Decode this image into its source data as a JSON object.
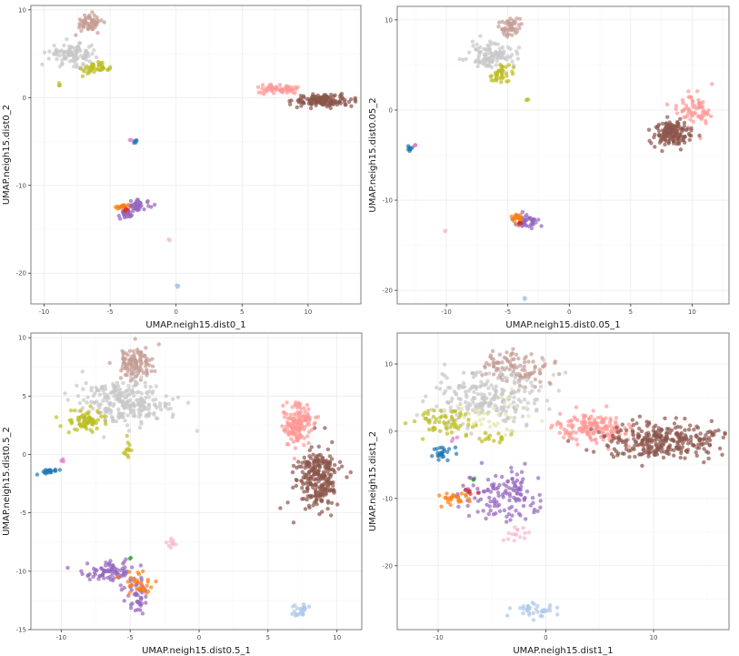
{
  "chart_data": [
    {
      "type": "scatter",
      "xlabel": "UMAP.neigh15.dist0_1",
      "ylabel": "UMAP.neigh15.dist0_2",
      "xlim": [
        -11,
        14
      ],
      "ylim": [
        -23.5,
        10.5
      ],
      "xticks": [
        -10,
        -5,
        0,
        5,
        10
      ],
      "yticks": [
        -20,
        -10,
        0,
        10
      ],
      "grid": true,
      "clusters": [
        {
          "color": "#c49c94",
          "cx": -6.6,
          "cy": 8.5,
          "sx": 0.5,
          "sy": 0.5,
          "n": 60
        },
        {
          "color": "#c7c7c7",
          "cx": -7.8,
          "cy": 5.0,
          "sx": 0.9,
          "sy": 0.6,
          "n": 110
        },
        {
          "color": "#bcbd22",
          "cx": -6.1,
          "cy": 3.3,
          "sx": 0.5,
          "sy": 0.3,
          "n": 40
        },
        {
          "color": "#bcbd22",
          "cx": -8.9,
          "cy": 1.4,
          "sx": 0.1,
          "sy": 0.1,
          "n": 3
        },
        {
          "color": "#ff9896",
          "cx": 7.8,
          "cy": 0.9,
          "sx": 0.9,
          "sy": 0.25,
          "n": 60
        },
        {
          "color": "#8c564b",
          "cx": 11.2,
          "cy": -0.3,
          "sx": 1.1,
          "sy": 0.35,
          "n": 140
        },
        {
          "color": "#e377c2",
          "cx": -3.4,
          "cy": -4.8,
          "sx": 0.05,
          "sy": 0.05,
          "n": 2
        },
        {
          "color": "#1f77b4",
          "cx": -3.1,
          "cy": -5.1,
          "sx": 0.06,
          "sy": 0.15,
          "n": 5
        },
        {
          "color": "#9467bd",
          "cx": -2.9,
          "cy": -12.3,
          "sx": 0.5,
          "sy": 0.3,
          "n": 40
        },
        {
          "color": "#9467bd",
          "cx": -3.8,
          "cy": -13.2,
          "sx": 0.25,
          "sy": 0.35,
          "n": 25
        },
        {
          "color": "#ff7f0e",
          "cx": -4.2,
          "cy": -12.4,
          "sx": 0.25,
          "sy": 0.2,
          "n": 15
        },
        {
          "color": "#d62728",
          "cx": -3.8,
          "cy": -12.8,
          "sx": 0.1,
          "sy": 0.1,
          "n": 3
        },
        {
          "color": "#f7b6d2",
          "cx": -0.5,
          "cy": -16.2,
          "sx": 0.05,
          "sy": 0.05,
          "n": 2
        },
        {
          "color": "#aec7e8",
          "cx": 0.1,
          "cy": -21.4,
          "sx": 0.12,
          "sy": 0.08,
          "n": 5
        }
      ]
    },
    {
      "type": "scatter",
      "xlabel": "UMAP.neigh15.dist0.05_1",
      "ylabel": "UMAP.neigh15.dist0.05_2",
      "xlim": [
        -14,
        13
      ],
      "ylim": [
        -21.5,
        11.5
      ],
      "xticks": [
        -10,
        -5,
        0,
        5,
        10
      ],
      "yticks": [
        -20,
        -10,
        0,
        10
      ],
      "grid": true,
      "clusters": [
        {
          "color": "#c49c94",
          "cx": -4.8,
          "cy": 9.3,
          "sx": 0.4,
          "sy": 0.5,
          "n": 50
        },
        {
          "color": "#c7c7c7",
          "cx": -6.3,
          "cy": 6.0,
          "sx": 0.9,
          "sy": 0.7,
          "n": 110
        },
        {
          "color": "#bcbd22",
          "cx": -5.5,
          "cy": 4.0,
          "sx": 0.5,
          "sy": 0.5,
          "n": 40
        },
        {
          "color": "#bcbd22",
          "cx": -3.5,
          "cy": 1.2,
          "sx": 0.1,
          "sy": 0.1,
          "n": 3
        },
        {
          "color": "#ff9896",
          "cx": 10.0,
          "cy": 0.2,
          "sx": 0.8,
          "sy": 1.1,
          "n": 70
        },
        {
          "color": "#8c564b",
          "cx": 8.4,
          "cy": -2.6,
          "sx": 0.7,
          "sy": 0.7,
          "n": 150
        },
        {
          "color": "#1f77b4",
          "cx": -12.9,
          "cy": -4.2,
          "sx": 0.12,
          "sy": 0.15,
          "n": 8
        },
        {
          "color": "#e377c2",
          "cx": -12.5,
          "cy": -3.9,
          "sx": 0.05,
          "sy": 0.05,
          "n": 3
        },
        {
          "color": "#9467bd",
          "cx": -3.5,
          "cy": -12.3,
          "sx": 0.6,
          "sy": 0.4,
          "n": 45
        },
        {
          "color": "#ff7f0e",
          "cx": -4.2,
          "cy": -12.0,
          "sx": 0.2,
          "sy": 0.3,
          "n": 20
        },
        {
          "color": "#d62728",
          "cx": -4.0,
          "cy": -12.5,
          "sx": 0.1,
          "sy": 0.1,
          "n": 3
        },
        {
          "color": "#f7b6d2",
          "cx": -10.1,
          "cy": -13.4,
          "sx": 0.05,
          "sy": 0.05,
          "n": 2
        },
        {
          "color": "#aec7e8",
          "cx": -3.6,
          "cy": -20.9,
          "sx": 0.05,
          "sy": 0.05,
          "n": 3
        }
      ]
    },
    {
      "type": "scatter",
      "xlabel": "UMAP.neigh15.dist0.5_1",
      "ylabel": "UMAP.neigh15.dist0.5_2",
      "xlim": [
        -12.2,
        11.8
      ],
      "ylim": [
        -15,
        10.4
      ],
      "xticks": [
        -10,
        -5,
        0,
        5,
        10
      ],
      "yticks": [
        -15,
        -10,
        -5,
        0,
        5,
        10
      ],
      "grid": true,
      "clusters": [
        {
          "color": "#c49c94",
          "cx": -4.6,
          "cy": 7.8,
          "sx": 0.7,
          "sy": 0.7,
          "n": 120
        },
        {
          "color": "#c7c7c7",
          "cx": -5.3,
          "cy": 4.4,
          "sx": 1.6,
          "sy": 1.0,
          "n": 260
        },
        {
          "color": "#bcbd22",
          "cx": -8.3,
          "cy": 2.8,
          "sx": 0.7,
          "sy": 0.5,
          "n": 70
        },
        {
          "color": "#bcbd22",
          "cx": -5.2,
          "cy": 0.2,
          "sx": 0.15,
          "sy": 0.5,
          "n": 12
        },
        {
          "color": "#1f77b4",
          "cx": -10.9,
          "cy": -1.4,
          "sx": 0.3,
          "sy": 0.15,
          "n": 22
        },
        {
          "color": "#e377c2",
          "cx": -9.9,
          "cy": -0.5,
          "sx": 0.15,
          "sy": 0.1,
          "n": 3
        },
        {
          "color": "#ff9896",
          "cx": 7.2,
          "cy": 2.6,
          "sx": 0.5,
          "sy": 0.9,
          "n": 150
        },
        {
          "color": "#8c564b",
          "cx": 8.6,
          "cy": -2.1,
          "sx": 0.8,
          "sy": 1.3,
          "n": 260
        },
        {
          "color": "#9467bd",
          "cx": -6.5,
          "cy": -10.0,
          "sx": 0.9,
          "sy": 0.5,
          "n": 80
        },
        {
          "color": "#9467bd",
          "cx": -4.5,
          "cy": -12.0,
          "sx": 0.5,
          "sy": 0.7,
          "n": 45
        },
        {
          "color": "#ff7f0e",
          "cx": -4.3,
          "cy": -11.0,
          "sx": 0.6,
          "sy": 0.6,
          "n": 30
        },
        {
          "color": "#2ca02c",
          "cx": -5.0,
          "cy": -8.9,
          "sx": 0.05,
          "sy": 0.05,
          "n": 2
        },
        {
          "color": "#f7b6d2",
          "cx": -1.9,
          "cy": -7.6,
          "sx": 0.2,
          "sy": 0.3,
          "n": 10
        },
        {
          "color": "#aec7e8",
          "cx": 7.3,
          "cy": -13.3,
          "sx": 0.4,
          "sy": 0.3,
          "n": 25
        }
      ]
    },
    {
      "type": "scatter",
      "xlabel": "UMAP.neigh15.dist1_1",
      "ylabel": "UMAP.neigh15.dist1_2",
      "xlim": [
        -13.8,
        17
      ],
      "ylim": [
        -29.5,
        14.6
      ],
      "xticks": [
        -10,
        0,
        10
      ],
      "yticks": [
        -20,
        -10,
        0,
        10
      ],
      "grid": true,
      "clusters": [
        {
          "color": "#c49c94",
          "cx": -2.8,
          "cy": 9.3,
          "sx": 1.5,
          "sy": 1.5,
          "n": 110
        },
        {
          "color": "#c7c7c7",
          "cx": -5.5,
          "cy": 5.0,
          "sx": 2.5,
          "sy": 2.0,
          "n": 230
        },
        {
          "color": "#e6e6b0",
          "cx": -5.0,
          "cy": 2.5,
          "sx": 2.0,
          "sy": 1.3,
          "n": 40
        },
        {
          "color": "#bcbd22",
          "cx": -9.5,
          "cy": 1.5,
          "sx": 1.5,
          "sy": 1.0,
          "n": 60
        },
        {
          "color": "#bcbd22",
          "cx": -5.0,
          "cy": -0.8,
          "sx": 0.8,
          "sy": 0.6,
          "n": 15
        },
        {
          "color": "#1f77b4",
          "cx": -9.7,
          "cy": -3.2,
          "sx": 0.7,
          "sy": 0.5,
          "n": 25
        },
        {
          "color": "#e377c2",
          "cx": -8.5,
          "cy": -1.2,
          "sx": 0.3,
          "sy": 0.2,
          "n": 3
        },
        {
          "color": "#ff9896",
          "cx": 4.5,
          "cy": 0.5,
          "sx": 1.8,
          "sy": 1.1,
          "n": 170
        },
        {
          "color": "#8c564b",
          "cx": 11.0,
          "cy": -1.3,
          "sx": 2.8,
          "sy": 1.4,
          "n": 300
        },
        {
          "color": "#9467bd",
          "cx": -4.0,
          "cy": -9.5,
          "sx": 1.6,
          "sy": 1.9,
          "n": 130
        },
        {
          "color": "#ff7f0e",
          "cx": -8.4,
          "cy": -10.0,
          "sx": 0.8,
          "sy": 0.5,
          "n": 25
        },
        {
          "color": "#d62728",
          "cx": -7.0,
          "cy": -9.0,
          "sx": 0.3,
          "sy": 0.4,
          "n": 5
        },
        {
          "color": "#2ca02c",
          "cx": -6.7,
          "cy": -7.2,
          "sx": 0.05,
          "sy": 0.05,
          "n": 2
        },
        {
          "color": "#f7b6d2",
          "cx": -2.7,
          "cy": -15.2,
          "sx": 0.5,
          "sy": 0.5,
          "n": 15
        },
        {
          "color": "#aec7e8",
          "cx": -1.1,
          "cy": -26.5,
          "sx": 1.0,
          "sy": 0.6,
          "n": 35
        }
      ]
    }
  ]
}
